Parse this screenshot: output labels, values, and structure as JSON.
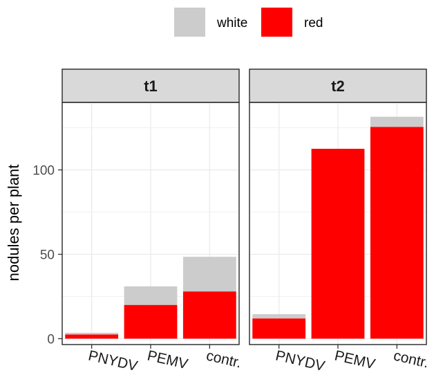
{
  "chart_data": {
    "type": "bar",
    "stacked": true,
    "ylabel": "nodules per plant",
    "ylim": [
      -3.5,
      140
    ],
    "yticks": [
      0,
      50,
      100
    ],
    "grid": true,
    "legend": {
      "position": "top",
      "items": [
        {
          "label": "white",
          "color": "#cccccc"
        },
        {
          "label": "red",
          "color": "#ff0000"
        }
      ]
    },
    "categories": [
      "PNYDV",
      "PEMV",
      "contr."
    ],
    "panels": [
      {
        "label": "t1",
        "series": [
          {
            "name": "red",
            "values": [
              2.5,
              20,
              28
            ]
          },
          {
            "name": "white",
            "values": [
              1,
              11,
              20.5
            ]
          }
        ]
      },
      {
        "label": "t2",
        "series": [
          {
            "name": "red",
            "values": [
              12,
              112.5,
              125.5
            ]
          },
          {
            "name": "white",
            "values": [
              2.5,
              0,
              6
            ]
          }
        ]
      }
    ]
  }
}
